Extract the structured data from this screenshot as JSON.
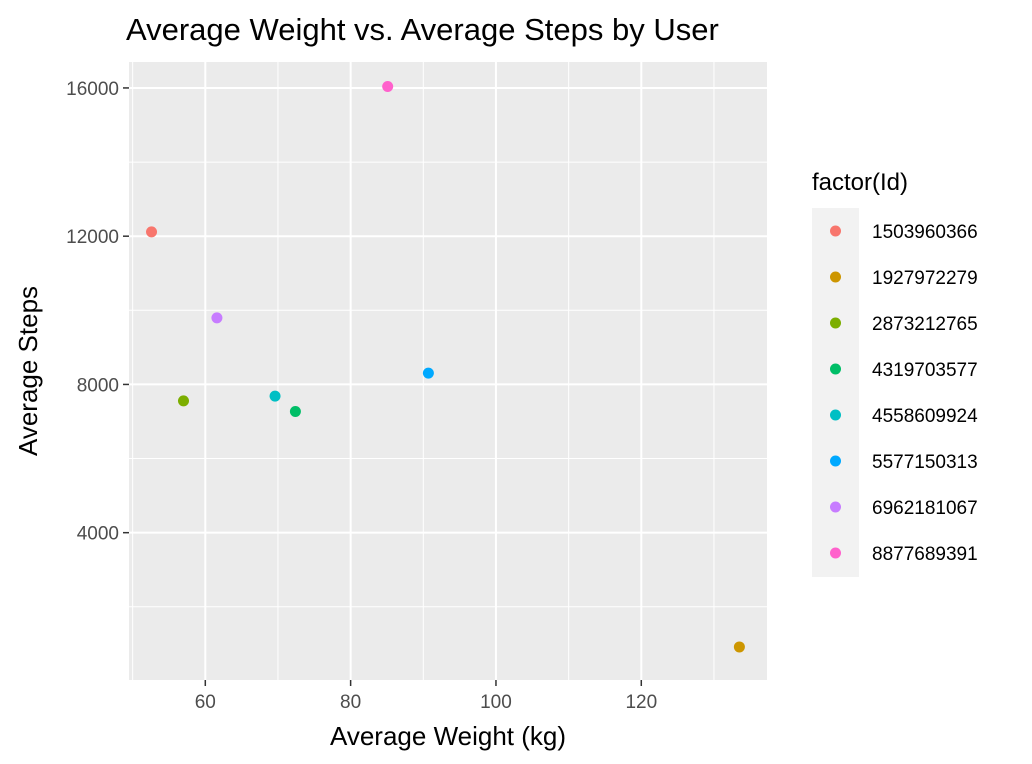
{
  "chart_data": {
    "type": "scatter",
    "title": "Average Weight vs. Average Steps by User",
    "xlabel": "Average Weight (kg)",
    "ylabel": "Average Steps",
    "xlim": [
      49.5,
      137.3
    ],
    "ylim": [
      25,
      16700
    ],
    "xticks": [
      60,
      80,
      100,
      120
    ],
    "yticks": [
      4000,
      8000,
      12000,
      16000
    ],
    "xtick_labels": [
      "60",
      "80",
      "100",
      "120"
    ],
    "ytick_labels": [
      "4000",
      "8000",
      "12000",
      "16000"
    ],
    "grid": true,
    "legend": {
      "title": "factor(Id)",
      "position": "right"
    },
    "series": [
      {
        "name": "1503960366",
        "color": "#F8766D",
        "x": [
          52.6
        ],
        "y": [
          12117
        ]
      },
      {
        "name": "1927972279",
        "color": "#CD9600",
        "x": [
          133.5
        ],
        "y": [
          917
        ]
      },
      {
        "name": "2873212765",
        "color": "#7CAE00",
        "x": [
          57.0
        ],
        "y": [
          7556
        ]
      },
      {
        "name": "4319703577",
        "color": "#00BE67",
        "x": [
          72.4
        ],
        "y": [
          7269
        ]
      },
      {
        "name": "4558609924",
        "color": "#00BFC4",
        "x": [
          69.6
        ],
        "y": [
          7685
        ]
      },
      {
        "name": "5577150313",
        "color": "#00A9FF",
        "x": [
          90.7
        ],
        "y": [
          8304
        ]
      },
      {
        "name": "6962181067",
        "color": "#C77CFF",
        "x": [
          61.6
        ],
        "y": [
          9795
        ]
      },
      {
        "name": "8877689391",
        "color": "#FF61CC",
        "x": [
          85.1
        ],
        "y": [
          16040
        ]
      }
    ]
  }
}
